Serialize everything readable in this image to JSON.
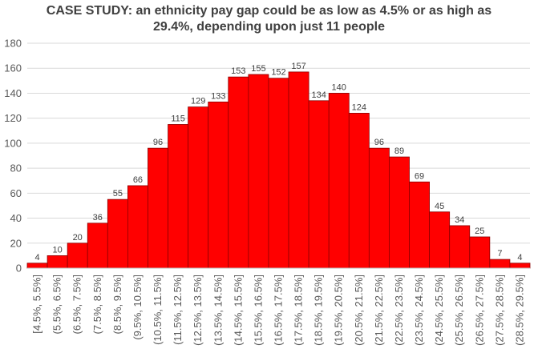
{
  "chart_data": {
    "type": "bar",
    "title_line1": "CASE STUDY: an ethnicity pay gap could be as low as 4.5% or as high as",
    "title_line2": "29.4%, depending upon just 11 people",
    "categories": [
      "[4.5%, 5.5%]",
      "(5.5%, 6.5%]",
      "(6.5%, 7.5%]",
      "(7.5%, 8.5%]",
      "(8.5%, 9.5%]",
      "(9.5%, 10.5%]",
      "(10.5%, 11.5%]",
      "(11.5%, 12.5%]",
      "(12.5%, 13.5%]",
      "(13.5%, 14.5%]",
      "(14.5%, 15.5%]",
      "(15.5%, 16.5%]",
      "(16.5%, 17.5%]",
      "(17.5%, 18.5%]",
      "(18.5%, 19.5%]",
      "(19.5%, 20.5%]",
      "(20.5%, 21.5%]",
      "(21.5%, 22.5%]",
      "(22.5%, 23.5%]",
      "(23.5%, 24.5%]",
      "(24.5%, 25.5%]",
      "(25.5%, 26.5%]",
      "(26.5%, 27.5%]",
      "(27.5%, 28.5%]",
      "(28.5%, 29.5%]"
    ],
    "values": [
      4,
      10,
      20,
      36,
      55,
      66,
      96,
      115,
      129,
      133,
      153,
      155,
      152,
      157,
      134,
      140,
      124,
      96,
      89,
      69,
      45,
      34,
      25,
      7,
      4
    ],
    "ylim": [
      0,
      180
    ],
    "yticks": [
      0,
      20,
      40,
      60,
      80,
      100,
      120,
      140,
      160,
      180
    ],
    "grid": true,
    "bar_color": "#ff0000",
    "bar_edge_color": "#8b0000",
    "grid_color": "#d9d9d9"
  }
}
